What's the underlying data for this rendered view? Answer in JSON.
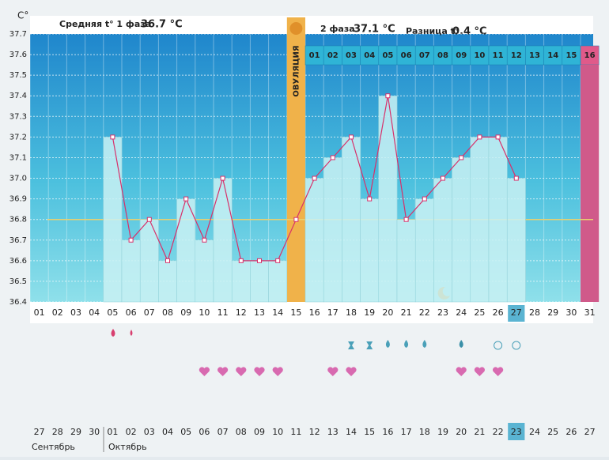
{
  "header": {
    "phase1_label": "Средняя t° 1 фаза",
    "phase1_value": "36.7 °C",
    "phase2_label": "2 фаза",
    "phase2_value": "37.1 °C",
    "diff_label": "Разница t°",
    "diff_value": "0.4 °C"
  },
  "chart_data": {
    "type": "line",
    "y_label": "C°",
    "categories": [
      "01",
      "02",
      "03",
      "04",
      "05",
      "06",
      "07",
      "08",
      "09",
      "10",
      "11",
      "12",
      "13",
      "14",
      "15",
      "16",
      "17",
      "18",
      "19",
      "20",
      "21",
      "22",
      "23",
      "24",
      "25",
      "26",
      "27",
      "28",
      "29",
      "30",
      "31"
    ],
    "values": [
      null,
      null,
      null,
      null,
      37.2,
      36.7,
      36.8,
      36.6,
      36.9,
      36.7,
      37.0,
      36.6,
      36.6,
      36.6,
      36.8,
      37.0,
      37.1,
      37.2,
      36.9,
      37.4,
      36.8,
      36.9,
      37.0,
      37.1,
      37.2,
      37.2,
      37.0,
      null,
      null,
      null,
      null
    ],
    "color": "#d8306a",
    "bar_color": "#c9f1f3",
    "cover_line": 36.8,
    "ylim": [
      36.4,
      37.7
    ],
    "yticks": [
      36.4,
      36.5,
      36.6,
      36.7,
      36.8,
      36.9,
      {
        "value": 37,
        "label": "37.0"
      },
      37.1,
      37.2,
      37.3,
      37.4,
      37.5,
      37.6,
      37.7
    ],
    "grid": true,
    "ovulation_label": "ОВУЛЯЦИЯ",
    "phase2_days": [
      "01",
      "02",
      "03",
      "04",
      "05",
      "06",
      "07",
      "08",
      "09",
      "10",
      "11",
      "12",
      "13",
      "14",
      "15",
      "16"
    ],
    "dates": [
      {
        "label": "27",
        "color": "#333"
      },
      {
        "label": "28",
        "color": "#333"
      },
      {
        "label": "29",
        "color": "#c0306a"
      },
      {
        "label": "30",
        "color": "#c0306a"
      },
      {
        "label": "01",
        "color": "#333"
      },
      {
        "label": "02",
        "color": "#333"
      },
      {
        "label": "03",
        "color": "#333"
      },
      {
        "label": "04",
        "color": "#333"
      },
      {
        "label": "05",
        "color": "#333"
      },
      {
        "label": "06",
        "color": "#c0306a"
      },
      {
        "label": "07",
        "color": "#c0306a"
      },
      {
        "label": "08",
        "color": "#333"
      },
      {
        "label": "09",
        "color": "#333"
      },
      {
        "label": "10",
        "color": "#333"
      },
      {
        "label": "11",
        "color": "#333"
      },
      {
        "label": "12",
        "color": "#333"
      },
      {
        "label": "13",
        "color": "#c0306a"
      },
      {
        "label": "14",
        "color": "#c0306a"
      },
      {
        "label": "15",
        "color": "#333"
      },
      {
        "label": "16",
        "color": "#333"
      },
      {
        "label": "17",
        "color": "#333"
      },
      {
        "label": "18",
        "color": "#333"
      },
      {
        "label": "19",
        "color": "#333"
      },
      {
        "label": "20",
        "color": "#c0306a"
      },
      {
        "label": "21",
        "color": "#333"
      },
      {
        "label": "22",
        "color": "#333"
      },
      {
        "label": "23",
        "color": "#333"
      },
      {
        "label": "24",
        "color": "#333"
      },
      {
        "label": "25",
        "color": "#333"
      },
      {
        "label": "26",
        "color": "#333"
      },
      {
        "label": "27",
        "color": "#c0306a"
      }
    ],
    "months": [
      "Сентябрь",
      "Октябрь"
    ]
  }
}
